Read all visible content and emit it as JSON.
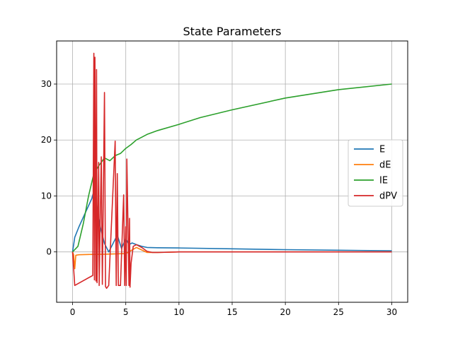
{
  "chart_data": {
    "type": "line",
    "title": "State Parameters",
    "xlabel": "",
    "ylabel": "",
    "xlim": [
      -1.5,
      31.5
    ],
    "ylim": [
      -9,
      37.7
    ],
    "xticks": [
      0,
      5,
      10,
      15,
      20,
      25,
      30
    ],
    "yticks": [
      0,
      10,
      20,
      30
    ],
    "grid": true,
    "legend_position": "center-right",
    "series": [
      {
        "name": "E",
        "color": "#1f77b4",
        "x": [
          0,
          0.2,
          0.6,
          1.2,
          1.8,
          2.1,
          2.3,
          2.6,
          3.0,
          3.4,
          3.8,
          4.2,
          4.6,
          5.0,
          5.3,
          5.6,
          6.0,
          6.5,
          7.0,
          8.0,
          10.0,
          15.0,
          20.0,
          25.0,
          30.0
        ],
        "y": [
          0,
          2.6,
          4.5,
          7.0,
          9.5,
          11.5,
          8.0,
          4.5,
          1.5,
          0.0,
          1.5,
          3.0,
          0.6,
          2.4,
          1.3,
          1.6,
          1.3,
          1.0,
          0.8,
          0.75,
          0.7,
          0.55,
          0.4,
          0.3,
          0.2
        ]
      },
      {
        "name": "dE",
        "color": "#ff7f0e",
        "x": [
          0,
          0.1,
          0.2,
          0.3,
          0.6,
          1.5,
          3.0,
          5.0,
          6.0,
          7.0,
          8.0,
          10.0,
          15.0,
          20.0,
          30.0
        ],
        "y": [
          0,
          -0.5,
          -3.0,
          -0.6,
          -0.5,
          -0.45,
          -0.4,
          -0.3,
          0.8,
          -0.1,
          -0.1,
          0,
          0,
          0,
          0
        ]
      },
      {
        "name": "IE",
        "color": "#2ca02c",
        "x": [
          0,
          0.5,
          1.0,
          1.5,
          2.0,
          2.5,
          3.0,
          3.5,
          4.0,
          4.5,
          5.0,
          5.5,
          6.0,
          6.5,
          7.0,
          8.0,
          10.0,
          12.0,
          15.0,
          20.0,
          25.0,
          30.0
        ],
        "y": [
          0,
          1.0,
          5.0,
          10.0,
          14.0,
          15.5,
          16.8,
          16.3,
          17.2,
          17.6,
          18.5,
          19.2,
          20.0,
          20.5,
          21.0,
          21.7,
          22.8,
          24.0,
          25.4,
          27.5,
          29.0,
          30.0
        ],
        "x_label_hint": "cumulative"
      },
      {
        "name": "dPV",
        "color": "#d62728",
        "x": [
          0,
          0.2,
          1.9,
          2.0,
          2.05,
          2.1,
          2.2,
          2.25,
          2.3,
          2.45,
          2.5,
          2.7,
          2.8,
          3.0,
          3.1,
          3.2,
          3.4,
          4.0,
          4.1,
          4.2,
          4.3,
          4.5,
          4.8,
          4.9,
          5.0,
          5.05,
          5.1,
          5.2,
          5.3,
          5.35,
          5.4,
          5.5,
          5.7,
          6.0,
          6.5,
          7.0,
          7.5,
          8.0,
          10.0,
          15.0,
          20.0,
          30.0
        ],
        "y": [
          0,
          -6.0,
          -4.2,
          35.5,
          -5.0,
          34.8,
          -5.2,
          32.6,
          -5.5,
          16.0,
          -6.0,
          17.0,
          -5.8,
          28.5,
          -6.2,
          -6.5,
          -6.0,
          19.8,
          -6.0,
          14.0,
          -6.0,
          -6.0,
          10.2,
          -6.0,
          4.5,
          -6.0,
          16.6,
          5.5,
          -6.0,
          6.0,
          -6.3,
          -2.0,
          1.0,
          1.3,
          0.8,
          0.1,
          -0.1,
          -0.1,
          0,
          0,
          0,
          0
        ]
      }
    ]
  }
}
